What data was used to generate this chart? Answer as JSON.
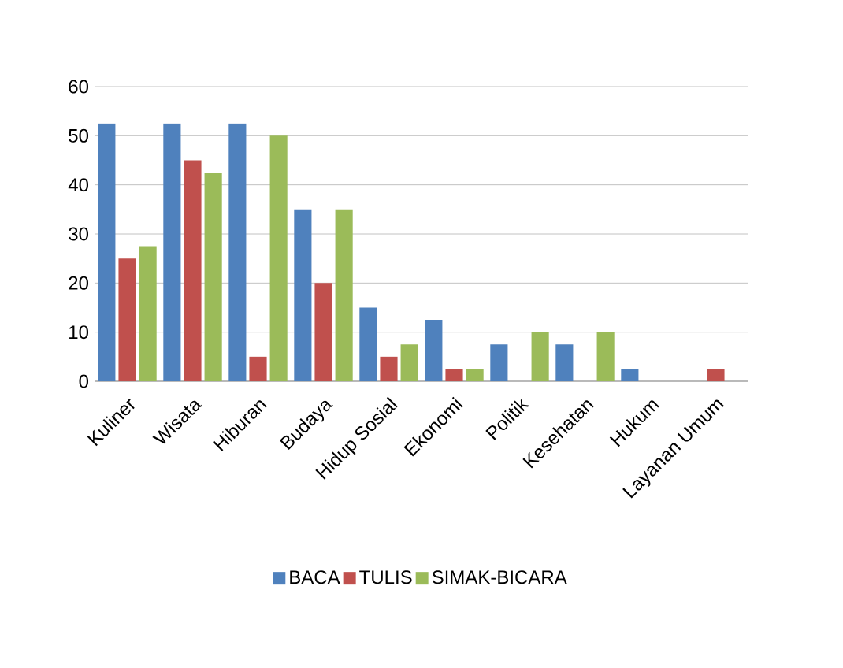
{
  "chart_data": {
    "type": "bar",
    "categories": [
      "Kuliner",
      "Wisata",
      "Hiburan",
      "Budaya",
      "Hidup Sosial",
      "Ekonomi",
      "Politik",
      "Kesehatan",
      "Hukum",
      "Layanan Umum"
    ],
    "series": [
      {
        "name": "BACA",
        "color": "#4f81bd",
        "values": [
          52.5,
          52.5,
          52.5,
          35,
          15,
          12.5,
          7.5,
          7.5,
          2.5,
          0
        ]
      },
      {
        "name": "TULIS",
        "color": "#c0504d",
        "values": [
          25,
          45,
          5,
          20,
          5,
          2.5,
          0,
          0,
          0,
          2.5
        ]
      },
      {
        "name": "SIMAK-BICARA",
        "color": "#9bbb59",
        "values": [
          27.5,
          42.5,
          50,
          35,
          7.5,
          2.5,
          10,
          10,
          0,
          0
        ]
      }
    ],
    "ylim": [
      0,
      60
    ],
    "yticks": [
      0,
      10,
      20,
      30,
      40,
      50,
      60
    ],
    "grid": "y",
    "legend": "bottom"
  }
}
